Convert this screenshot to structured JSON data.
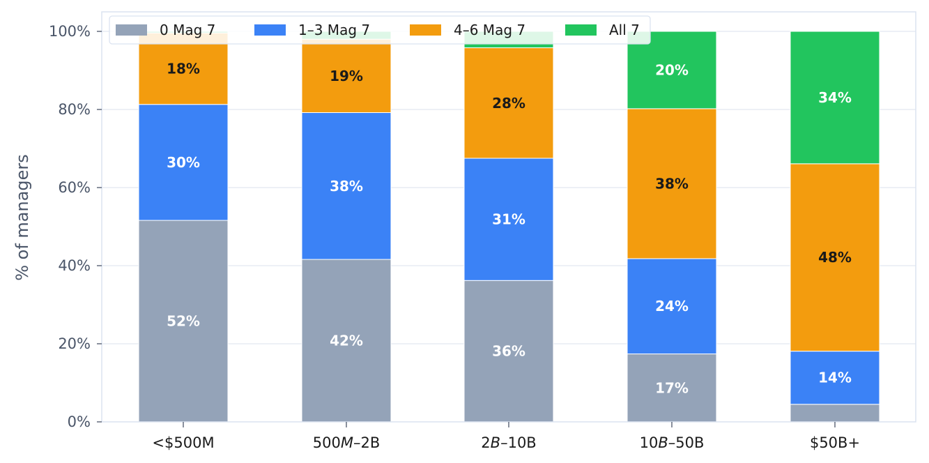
{
  "chart_data": {
    "type": "bar",
    "stacked": true,
    "ylabel": "% of managers",
    "xlabel": "",
    "ylim": [
      0,
      100
    ],
    "yticks": [
      "0%",
      "20%",
      "40%",
      "60%",
      "80%",
      "100%"
    ],
    "ytick_values": [
      0,
      20,
      40,
      60,
      80,
      100
    ],
    "grid": "horizontal",
    "legend_position": "top-left",
    "categories": [
      "<$500M",
      "500M–2B",
      "2B–10B",
      "10B–50B",
      "$50B+"
    ],
    "category_labels": [
      {
        "plain": "<$500M"
      },
      {
        "pre": "500",
        "ital": "M",
        "post": "–2B"
      },
      {
        "pre": "2",
        "ital": "B",
        "post": "–10B"
      },
      {
        "pre": "10",
        "ital": "B",
        "post": "–50B"
      },
      {
        "plain": "$50B+"
      }
    ],
    "series": [
      {
        "name": "0 Mag 7",
        "color": "#94a3b8",
        "label_color": "#ffffff",
        "values": [
          51.6,
          41.6,
          36.2,
          17.4,
          4.5
        ],
        "labels": [
          "52%",
          "42%",
          "36%",
          "17%",
          ""
        ]
      },
      {
        "name": "1–3 Mag 7",
        "color": "#3b82f6",
        "label_color": "#ffffff",
        "values": [
          29.7,
          37.6,
          31.3,
          24.4,
          13.6
        ],
        "labels": [
          "30%",
          "38%",
          "31%",
          "24%",
          "14%"
        ]
      },
      {
        "name": "4–6 Mag 7",
        "color": "#f39c0e",
        "label_color": "#1a1a1a",
        "values": [
          18.3,
          18.8,
          28.3,
          38.4,
          48.0
        ],
        "labels": [
          "18%",
          "19%",
          "28%",
          "38%",
          "48%"
        ]
      },
      {
        "name": "All 7",
        "color": "#22c55e",
        "label_color": "#ffffff",
        "values": [
          0.4,
          2.0,
          4.2,
          19.8,
          33.9
        ],
        "labels": [
          "",
          "",
          "",
          "20%",
          "34%"
        ]
      }
    ]
  }
}
